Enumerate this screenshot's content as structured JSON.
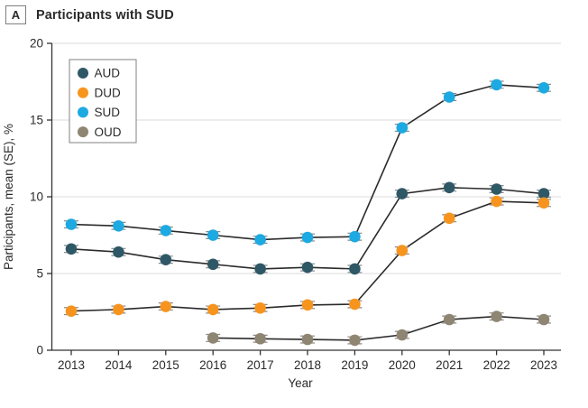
{
  "panel": {
    "label": "A",
    "title": "Participants with SUD"
  },
  "colors": {
    "aud": "#2F5867",
    "dud": "#F7941E",
    "sud": "#1DA9E1",
    "oud": "#8F8573",
    "line": "#2B2B2B",
    "grid": "#E2E2E2",
    "axis": "#333333",
    "text": "#2B2B2B",
    "error_bar": "#8A8A8A",
    "legend_border": "#808080",
    "legend_fill": "#FFFFFF"
  },
  "chart_data": {
    "type": "line",
    "title": "Participants with SUD",
    "xlabel": "Year",
    "ylabel": "Participants, mean (SE), %",
    "x": [
      2013,
      2014,
      2015,
      2016,
      2017,
      2018,
      2019,
      2020,
      2021,
      2022,
      2023
    ],
    "ylim": [
      0,
      20
    ],
    "yticks": [
      0,
      5,
      10,
      15,
      20
    ],
    "grid": true,
    "legend_position": "upper-left-inside",
    "error_bars": "SE whiskers, small (approx ±0.2 visible)",
    "series": [
      {
        "name": "AUD",
        "color": "#2F5867",
        "se_approx": 0.2,
        "values": [
          6.6,
          6.4,
          5.9,
          5.6,
          5.3,
          5.4,
          5.3,
          10.2,
          10.6,
          10.5,
          10.2
        ]
      },
      {
        "name": "DUD",
        "color": "#F7941E",
        "se_approx": 0.2,
        "values": [
          2.55,
          2.65,
          2.85,
          2.65,
          2.75,
          2.95,
          3.0,
          6.5,
          8.6,
          9.7,
          9.6
        ]
      },
      {
        "name": "SUD",
        "color": "#1DA9E1",
        "se_approx": 0.2,
        "values": [
          8.2,
          8.1,
          7.8,
          7.5,
          7.2,
          7.35,
          7.4,
          14.5,
          16.5,
          17.3,
          17.1
        ]
      },
      {
        "name": "OUD",
        "color": "#8F8573",
        "se_approx": 0.2,
        "values": [
          null,
          null,
          null,
          0.8,
          0.75,
          0.7,
          0.65,
          1.0,
          2.0,
          2.2,
          2.0
        ]
      }
    ]
  }
}
